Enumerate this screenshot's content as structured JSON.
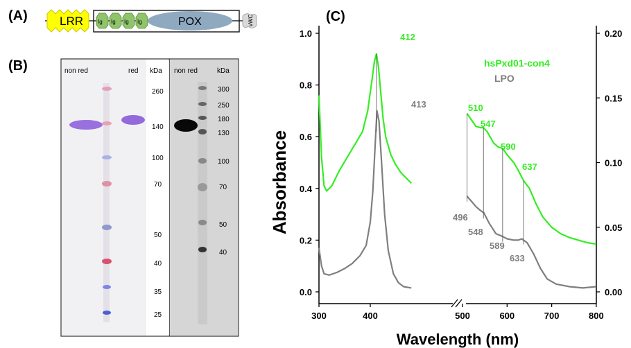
{
  "panels": {
    "a_label": "(A)",
    "b_label": "(B)",
    "c_label": "(C)"
  },
  "domain_diagram": {
    "lrr": "LRR",
    "ig": [
      "Ig",
      "Ig",
      "Ig",
      "Ig"
    ],
    "pox": "POX",
    "vwc": "vWC",
    "colors": {
      "lrr": "#ffff00",
      "ig": "#8fc46a",
      "pox": "#8faac0",
      "vwc": "#d9d9d9"
    }
  },
  "gels": {
    "left": {
      "lane_labels": [
        "non red",
        "red"
      ],
      "unit": "kDa",
      "markers": [
        "260",
        "140",
        "100",
        "70",
        "50",
        "40",
        "35",
        "25"
      ]
    },
    "right": {
      "lane_labels": [
        "non red"
      ],
      "unit": "kDa",
      "markers": [
        "300",
        "250",
        "180",
        "130",
        "100",
        "70",
        "50",
        "40"
      ]
    }
  },
  "chart_data": {
    "type": "line",
    "xlabel": "Wavelength (nm)",
    "ylabel": "Absorbance",
    "x_ticks": [
      "300",
      "400",
      "500",
      "600",
      "700",
      "800"
    ],
    "y_left_ticks": [
      "0.0",
      "0.2",
      "0.4",
      "0.6",
      "0.8",
      "1.0"
    ],
    "y_right_ticks": [
      "0.00",
      "0.05",
      "0.10",
      "0.15",
      "0.20"
    ],
    "xlim": [
      300,
      800
    ],
    "ylim_left": [
      0,
      1.0
    ],
    "ylim_right": [
      0,
      0.2
    ],
    "axis_break": "between 480 and 510 nm",
    "legend": [
      "hsPxd01-con4",
      "LPO"
    ],
    "colors": {
      "hsPxd01-con4": "#33ee22",
      "LPO": "#7f7f7f"
    },
    "series": [
      {
        "name": "hsPxd01-con4",
        "segment1_axis": "left",
        "segment1": [
          [
            300,
            0.76
          ],
          [
            305,
            0.52
          ],
          [
            310,
            0.41
          ],
          [
            315,
            0.39
          ],
          [
            325,
            0.41
          ],
          [
            340,
            0.47
          ],
          [
            355,
            0.52
          ],
          [
            370,
            0.57
          ],
          [
            385,
            0.62
          ],
          [
            395,
            0.7
          ],
          [
            402,
            0.8
          ],
          [
            408,
            0.89
          ],
          [
            412,
            0.92
          ],
          [
            416,
            0.87
          ],
          [
            420,
            0.78
          ],
          [
            425,
            0.67
          ],
          [
            430,
            0.6
          ],
          [
            440,
            0.53
          ],
          [
            450,
            0.49
          ],
          [
            460,
            0.46
          ],
          [
            470,
            0.44
          ],
          [
            480,
            0.42
          ]
        ],
        "segment2_axis": "right",
        "segment2": [
          [
            510,
            0.138
          ],
          [
            520,
            0.133
          ],
          [
            530,
            0.128
          ],
          [
            540,
            0.127
          ],
          [
            547,
            0.127
          ],
          [
            555,
            0.124
          ],
          [
            570,
            0.115
          ],
          [
            580,
            0.112
          ],
          [
            590,
            0.111
          ],
          [
            600,
            0.106
          ],
          [
            615,
            0.1
          ],
          [
            625,
            0.094
          ],
          [
            637,
            0.086
          ],
          [
            650,
            0.08
          ],
          [
            665,
            0.068
          ],
          [
            680,
            0.058
          ],
          [
            700,
            0.05
          ],
          [
            720,
            0.045
          ],
          [
            740,
            0.042
          ],
          [
            760,
            0.04
          ],
          [
            780,
            0.038
          ],
          [
            800,
            0.037
          ]
        ]
      },
      {
        "name": "LPO",
        "segment1_axis": "left",
        "segment1": [
          [
            300,
            0.17
          ],
          [
            305,
            0.1
          ],
          [
            310,
            0.07
          ],
          [
            320,
            0.065
          ],
          [
            335,
            0.075
          ],
          [
            350,
            0.09
          ],
          [
            365,
            0.11
          ],
          [
            380,
            0.14
          ],
          [
            392,
            0.18
          ],
          [
            400,
            0.27
          ],
          [
            405,
            0.39
          ],
          [
            409,
            0.55
          ],
          [
            413,
            0.7
          ],
          [
            417,
            0.66
          ],
          [
            422,
            0.5
          ],
          [
            428,
            0.3
          ],
          [
            435,
            0.16
          ],
          [
            445,
            0.07
          ],
          [
            455,
            0.035
          ],
          [
            465,
            0.02
          ],
          [
            480,
            0.015
          ]
        ],
        "segment2_axis": "right",
        "segment2": [
          [
            510,
            0.074
          ],
          [
            520,
            0.07
          ],
          [
            530,
            0.066
          ],
          [
            540,
            0.063
          ],
          [
            548,
            0.061
          ],
          [
            560,
            0.053
          ],
          [
            575,
            0.045
          ],
          [
            589,
            0.043
          ],
          [
            600,
            0.041
          ],
          [
            615,
            0.04
          ],
          [
            625,
            0.04
          ],
          [
            633,
            0.041
          ],
          [
            645,
            0.038
          ],
          [
            660,
            0.029
          ],
          [
            675,
            0.018
          ],
          [
            690,
            0.01
          ],
          [
            710,
            0.006
          ],
          [
            740,
            0.004
          ],
          [
            770,
            0.003
          ],
          [
            800,
            0.004
          ]
        ]
      }
    ],
    "peak_labels": {
      "hsPxd01-con4": [
        "412",
        "510",
        "547",
        "590",
        "637"
      ],
      "LPO": [
        "413",
        "496",
        "548",
        "589",
        "633"
      ]
    }
  }
}
